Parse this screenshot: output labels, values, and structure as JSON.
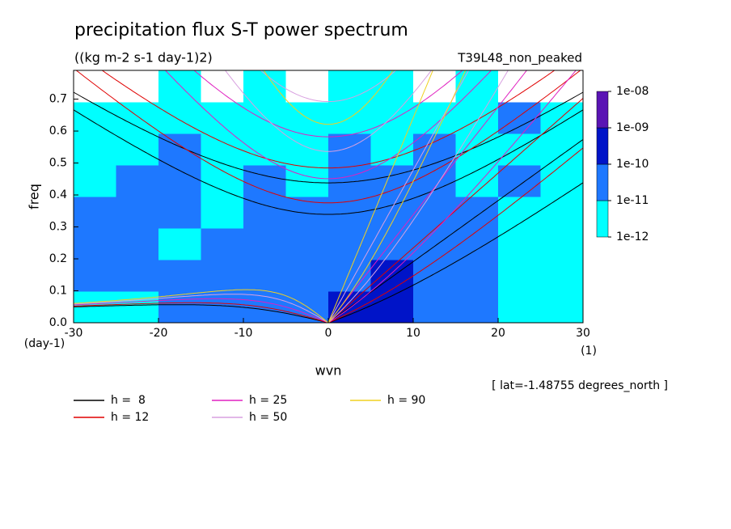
{
  "chart_data": {
    "type": "contour",
    "title": "precipitation flux S-T power spectrum",
    "subtitle": "((kg m-2 s-1 day-1)2)",
    "dataset": "T39L48_non_peaked",
    "xlabel": "wvn",
    "ylabel": "freq",
    "xunits": "(1)",
    "yunits": "(day-1)",
    "annotation": "[ lat=-1.48755 degrees_north ]",
    "xlim": [
      -30,
      30
    ],
    "ylim": [
      0,
      0.79
    ],
    "xticks": [
      -30,
      -20,
      -10,
      0,
      10,
      20,
      30
    ],
    "yticks": [
      {
        "value": 0,
        "label": "0.0"
      },
      0.1,
      0.2,
      0.3,
      0.4,
      0.5,
      0.6,
      0.7
    ],
    "z": [
      [
        3e-12,
        3e-12,
        3e-11,
        3e-11,
        3e-11,
        3e-11,
        3e-10,
        3e-10,
        3e-11,
        3e-11,
        3e-12,
        3e-12
      ],
      [
        3e-11,
        3e-11,
        3e-11,
        3e-11,
        3e-11,
        3e-11,
        3e-11,
        3e-10,
        3e-11,
        3e-11,
        3e-12,
        3e-12
      ],
      [
        3e-11,
        3e-11,
        3e-12,
        3e-11,
        3e-11,
        3e-11,
        3e-11,
        3e-11,
        3e-11,
        3e-11,
        3e-12,
        3e-12
      ],
      [
        3e-11,
        3e-11,
        3e-11,
        3e-12,
        3e-11,
        3e-11,
        3e-11,
        3e-11,
        3e-11,
        3e-11,
        3e-12,
        3e-12
      ],
      [
        3e-12,
        3e-11,
        3e-11,
        3e-12,
        3e-11,
        3e-12,
        3e-11,
        3e-11,
        3e-11,
        3e-12,
        3e-11,
        3e-12
      ],
      [
        3e-12,
        3e-12,
        3e-11,
        3e-12,
        3e-12,
        3e-12,
        3e-11,
        3e-12,
        3e-11,
        3e-12,
        3e-12,
        3e-12
      ],
      [
        3e-12,
        3e-12,
        3e-12,
        3e-12,
        3e-12,
        3e-12,
        3e-12,
        3e-12,
        3e-12,
        3e-12,
        3e-11,
        3e-12
      ],
      [
        5e-13,
        5e-13,
        3e-12,
        5e-13,
        3e-12,
        5e-13,
        3e-12,
        3e-12,
        5e-13,
        3e-12,
        5e-13,
        5e-13
      ]
    ],
    "colorbar": {
      "levels": [
        {
          "value": 1e-12,
          "label": "1e-12"
        },
        {
          "value": 1e-11,
          "label": "1e-11"
        },
        {
          "value": 1e-10,
          "label": "1e-10"
        },
        {
          "value": 1e-09,
          "label": "1e-09"
        },
        {
          "value": 1e-08,
          "label": "1e-08"
        }
      ],
      "colors": [
        "#00ffff",
        "#1e78ff",
        "#0014c8",
        "#5a14b4"
      ],
      "below_color": "#ffffff"
    },
    "curves": [
      {
        "name": "h =  8",
        "h": 8,
        "color": "#000000"
      },
      {
        "name": "h = 12",
        "h": 12,
        "color": "#e00000"
      },
      {
        "name": "h = 25",
        "h": 25,
        "color": "#e020c0"
      },
      {
        "name": "h = 50",
        "h": 50,
        "color": "#d8a0e0"
      },
      {
        "name": "h = 90",
        "h": 90,
        "color": "#f0d020"
      }
    ]
  }
}
